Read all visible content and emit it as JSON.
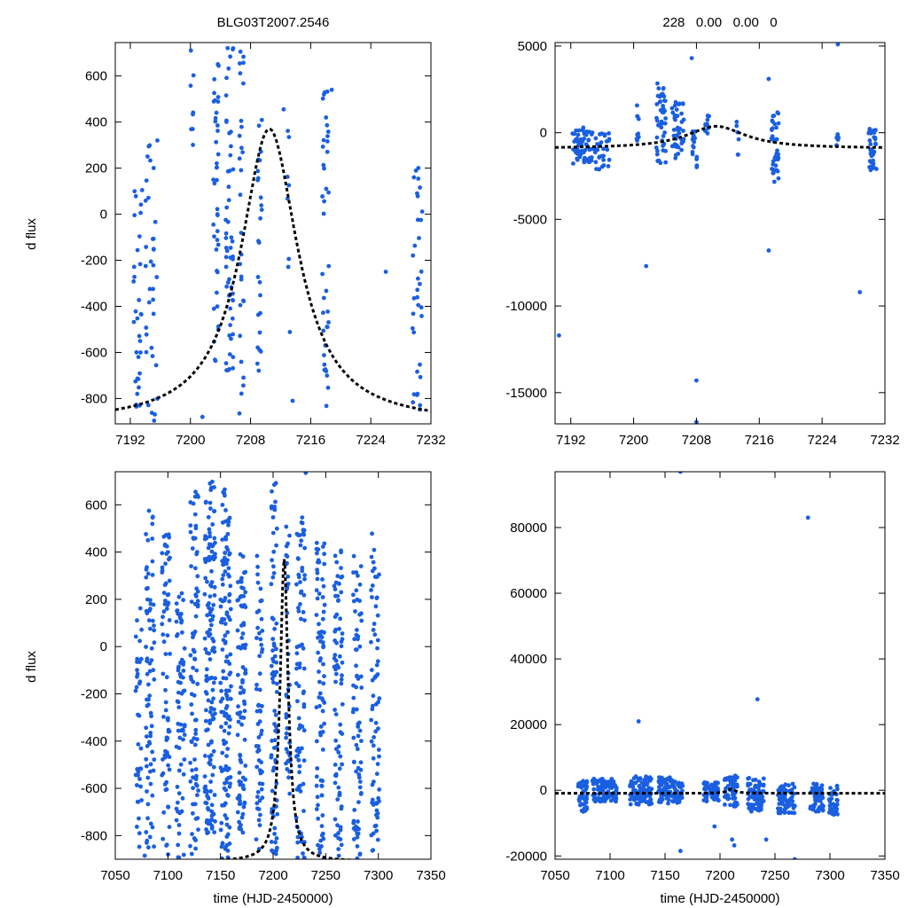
{
  "figure": {
    "title": "BLG03T2007.2546",
    "subtitle": "228   0.00   0.00   0"
  },
  "colors": {
    "points": "#1a5fe0",
    "model": "#000000",
    "axes": "#000000"
  },
  "chart_data": [
    {
      "id": "top-left",
      "type": "scatter",
      "title": "BLG03T2007.2546",
      "xlabel": "",
      "ylabel": "d flux",
      "xlim": [
        7190,
        7232
      ],
      "ylim": [
        -910,
        745
      ],
      "xticks": [
        7192,
        7200,
        7208,
        7216,
        7224,
        7232
      ],
      "yticks": [
        -800,
        -600,
        -400,
        -200,
        0,
        200,
        400,
        600
      ],
      "clusters": [
        {
          "x": 7193.0,
          "width": 1.2,
          "ymin": -900,
          "ymax": 110,
          "n": 32
        },
        {
          "x": 7194.8,
          "width": 1.6,
          "ymin": -900,
          "ymax": 320,
          "n": 34
        },
        {
          "x": 7200.2,
          "width": 0.4,
          "ymin": 240,
          "ymax": 740,
          "n": 8
        },
        {
          "x": 7203.4,
          "width": 0.7,
          "ymin": -720,
          "ymax": 740,
          "n": 40
        },
        {
          "x": 7205.2,
          "width": 1.0,
          "ymin": -680,
          "ymax": 740,
          "n": 55
        },
        {
          "x": 7206.8,
          "width": 0.6,
          "ymin": -880,
          "ymax": 740,
          "n": 28
        },
        {
          "x": 7209.2,
          "width": 0.6,
          "ymin": -880,
          "ymax": 410,
          "n": 26
        },
        {
          "x": 7213.1,
          "width": 0.4,
          "ymin": -900,
          "ymax": 460,
          "n": 8
        },
        {
          "x": 7218.0,
          "width": 0.9,
          "ymin": -900,
          "ymax": 540,
          "n": 38
        },
        {
          "x": 7230.2,
          "width": 1.3,
          "ymin": -900,
          "ymax": 240,
          "n": 34
        }
      ],
      "points": [
        {
          "x": 7195.6,
          "y": 320
        },
        {
          "x": 7201.6,
          "y": -880
        },
        {
          "x": 7212.4,
          "y": 455
        },
        {
          "x": 7213.6,
          "y": -810
        },
        {
          "x": 7226.0,
          "y": -250
        },
        {
          "x": 7218.8,
          "y": 540
        }
      ],
      "model": {
        "t0": 7210.5,
        "peak": 370,
        "base": -910,
        "tau": 4.6
      }
    },
    {
      "id": "top-right",
      "type": "scatter",
      "title": "228   0.00   0.00   0",
      "xlabel": "",
      "ylabel": "",
      "xlim": [
        7190,
        7232
      ],
      "ylim": [
        -16800,
        5200
      ],
      "xticks": [
        7192,
        7200,
        7208,
        7216,
        7224,
        7232
      ],
      "yticks": [
        -15000,
        -10000,
        -5000,
        0,
        5000
      ],
      "clusters": [
        {
          "x": 7193.5,
          "width": 2.6,
          "ymin": -1800,
          "ymax": 300,
          "n": 60
        },
        {
          "x": 7196.0,
          "width": 1.8,
          "ymin": -2200,
          "ymax": 0,
          "n": 32
        },
        {
          "x": 7200.5,
          "width": 0.4,
          "ymin": -1800,
          "ymax": 1600,
          "n": 10
        },
        {
          "x": 7203.5,
          "width": 1.2,
          "ymin": -1800,
          "ymax": 2900,
          "n": 45
        },
        {
          "x": 7205.6,
          "width": 1.6,
          "ymin": -1500,
          "ymax": 1800,
          "n": 40
        },
        {
          "x": 7207.8,
          "width": 0.6,
          "ymin": -2300,
          "ymax": 200,
          "n": 16
        },
        {
          "x": 7209.4,
          "width": 0.6,
          "ymin": -900,
          "ymax": 1000,
          "n": 12
        },
        {
          "x": 7213.2,
          "width": 0.4,
          "ymin": -1600,
          "ymax": 900,
          "n": 6
        },
        {
          "x": 7218.0,
          "width": 1.0,
          "ymin": -3000,
          "ymax": 1200,
          "n": 36
        },
        {
          "x": 7226.0,
          "width": 0.4,
          "ymin": -1400,
          "ymax": 0,
          "n": 6
        },
        {
          "x": 7230.4,
          "width": 1.2,
          "ymin": -2200,
          "ymax": 300,
          "n": 34
        }
      ],
      "points": [
        {
          "x": 7190.5,
          "y": -11700
        },
        {
          "x": 7201.6,
          "y": -7700
        },
        {
          "x": 7207.4,
          "y": 4300
        },
        {
          "x": 7208.0,
          "y": -14300
        },
        {
          "x": 7208.0,
          "y": -16700
        },
        {
          "x": 7217.2,
          "y": -6800
        },
        {
          "x": 7217.2,
          "y": 3100
        },
        {
          "x": 7226.0,
          "y": 5100
        },
        {
          "x": 7228.8,
          "y": -9200
        }
      ],
      "model": {
        "t0": 7210.5,
        "peak": 370,
        "base": -910,
        "tau": 4.6
      }
    },
    {
      "id": "bottom-left",
      "type": "scatter",
      "title": "",
      "xlabel": "time (HJD-2450000)",
      "ylabel": "d flux",
      "xlim": [
        7050,
        7350
      ],
      "ylim": [
        -900,
        740
      ],
      "xticks": [
        7050,
        7100,
        7150,
        7200,
        7250,
        7300,
        7350
      ],
      "yticks": [
        -800,
        -600,
        -400,
        -200,
        0,
        200,
        400,
        600
      ],
      "clusters": [
        {
          "x": 7072,
          "width": 6,
          "ymin": -900,
          "ymax": 200,
          "n": 35
        },
        {
          "x": 7083,
          "width": 8,
          "ymin": -900,
          "ymax": 580,
          "n": 75
        },
        {
          "x": 7098,
          "width": 8,
          "ymin": -900,
          "ymax": 480,
          "n": 75
        },
        {
          "x": 7112,
          "width": 8,
          "ymin": -900,
          "ymax": 280,
          "n": 70
        },
        {
          "x": 7125,
          "width": 8,
          "ymin": -900,
          "ymax": 660,
          "n": 85
        },
        {
          "x": 7140,
          "width": 10,
          "ymin": -800,
          "ymax": 700,
          "n": 150
        },
        {
          "x": 7155,
          "width": 10,
          "ymin": -900,
          "ymax": 660,
          "n": 140
        },
        {
          "x": 7170,
          "width": 8,
          "ymin": -800,
          "ymax": 420,
          "n": 90
        },
        {
          "x": 7187,
          "width": 6,
          "ymin": -860,
          "ymax": 400,
          "n": 60
        },
        {
          "x": 7201,
          "width": 6,
          "ymin": -880,
          "ymax": 730,
          "n": 80
        },
        {
          "x": 7214,
          "width": 4,
          "ymin": -700,
          "ymax": 520,
          "n": 40
        },
        {
          "x": 7226,
          "width": 8,
          "ymin": -900,
          "ymax": 580,
          "n": 85
        },
        {
          "x": 7245,
          "width": 8,
          "ymin": -900,
          "ymax": 440,
          "n": 85
        },
        {
          "x": 7262,
          "width": 8,
          "ymin": -900,
          "ymax": 420,
          "n": 80
        },
        {
          "x": 7280,
          "width": 8,
          "ymin": -900,
          "ymax": 390,
          "n": 75
        },
        {
          "x": 7297,
          "width": 8,
          "ymin": -900,
          "ymax": 480,
          "n": 70
        }
      ],
      "points": [
        {
          "x": 7082,
          "y": 575
        },
        {
          "x": 7140,
          "y": 690
        },
        {
          "x": 7154,
          "y": 665
        },
        {
          "x": 7231,
          "y": 735
        },
        {
          "x": 7294,
          "y": 478
        },
        {
          "x": 7073,
          "y": -790
        },
        {
          "x": 7078,
          "y": -885
        }
      ],
      "model": {
        "t0": 7210.5,
        "peak": 370,
        "base": -910,
        "tau": 4.6
      }
    },
    {
      "id": "bottom-right",
      "type": "scatter",
      "title": "",
      "xlabel": "time (HJD-2450000)",
      "ylabel": "",
      "xlim": [
        7050,
        7350
      ],
      "ylim": [
        -21000,
        97000
      ],
      "xticks": [
        7050,
        7100,
        7150,
        7200,
        7250,
        7300,
        7350
      ],
      "yticks": [
        -20000,
        0,
        20000,
        40000,
        60000,
        80000
      ],
      "clusters": [
        {
          "x": 7075,
          "width": 8,
          "ymin": -6500,
          "ymax": 3000,
          "n": 45
        },
        {
          "x": 7095,
          "width": 22,
          "ymin": -3500,
          "ymax": 3500,
          "n": 100
        },
        {
          "x": 7128,
          "width": 20,
          "ymin": -4500,
          "ymax": 4200,
          "n": 100
        },
        {
          "x": 7155,
          "width": 22,
          "ymin": -4000,
          "ymax": 4000,
          "n": 110
        },
        {
          "x": 7192,
          "width": 14,
          "ymin": -3500,
          "ymax": 2500,
          "n": 60
        },
        {
          "x": 7210,
          "width": 12,
          "ymin": -5000,
          "ymax": 4500,
          "n": 60
        },
        {
          "x": 7232,
          "width": 16,
          "ymin": -6500,
          "ymax": 4000,
          "n": 80
        },
        {
          "x": 7260,
          "width": 16,
          "ymin": -7000,
          "ymax": 2000,
          "n": 70
        },
        {
          "x": 7288,
          "width": 12,
          "ymin": -6500,
          "ymax": 2000,
          "n": 60
        },
        {
          "x": 7303,
          "width": 8,
          "ymin": -7500,
          "ymax": 1500,
          "n": 40
        }
      ],
      "points": [
        {
          "x": 7164,
          "y": 97000
        },
        {
          "x": 7280,
          "y": 83000
        },
        {
          "x": 7126,
          "y": 21000
        },
        {
          "x": 7234,
          "y": 27700
        },
        {
          "x": 7211,
          "y": -15000
        },
        {
          "x": 7213,
          "y": -16800
        },
        {
          "x": 7164,
          "y": -18500
        },
        {
          "x": 7268,
          "y": -21000
        },
        {
          "x": 7242,
          "y": -15000
        },
        {
          "x": 7195,
          "y": -11000
        }
      ],
      "model": {
        "t0": 7210.5,
        "peak": 370,
        "base": -910,
        "tau": 4.6
      }
    }
  ]
}
